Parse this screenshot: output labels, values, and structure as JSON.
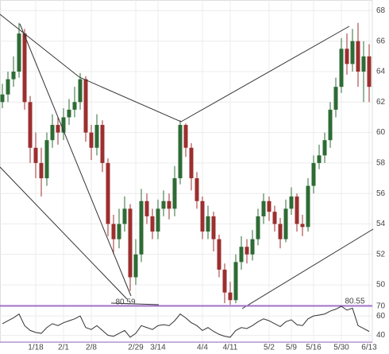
{
  "chart_data": {
    "type": "candlestick",
    "categories": [
      null,
      null,
      null,
      null,
      null,
      null,
      "1/18",
      null,
      null,
      null,
      null,
      "2/1",
      null,
      null,
      null,
      null,
      "2/8",
      null,
      null,
      null,
      null,
      null,
      null,
      null,
      "2/29",
      null,
      null,
      null,
      "3/14",
      null,
      null,
      null,
      null,
      null,
      null,
      null,
      "4/4",
      null,
      null,
      null,
      null,
      "4/11",
      null,
      null,
      null,
      null,
      null,
      null,
      "5/2",
      null,
      null,
      null,
      "5/9",
      null,
      null,
      null,
      "5/16",
      null,
      null,
      null,
      null,
      "5/30",
      null,
      null,
      null,
      null,
      "6/13"
    ],
    "open": [
      62.0,
      62.5,
      63.5,
      64.0,
      66.5,
      62.0,
      59.0,
      58.0,
      57.0,
      59.5,
      60.5,
      60.0,
      61.0,
      61.5,
      62.0,
      63.5,
      60.0,
      59.0,
      60.5,
      58.0,
      54.0,
      53.0,
      54.0,
      55.0,
      50.5,
      52.0,
      55.5,
      54.5,
      53.5,
      55.0,
      55.5,
      55.0,
      57.0,
      60.5,
      59.0,
      57.0,
      55.5,
      53.5,
      54.5,
      53.0,
      51.0,
      49.5,
      49.0,
      51.5,
      52.5,
      52.0,
      53.0,
      54.5,
      55.5,
      54.8,
      54.0,
      53.0,
      55.0,
      55.8,
      54.0,
      53.8,
      56.5,
      58.0,
      58.5,
      59.5,
      61.5,
      63.0,
      65.5,
      64.5,
      66.0,
      64.0,
      65.0
    ],
    "high": [
      63.2,
      64.0,
      65.0,
      67.2,
      66.8,
      62.4,
      60.0,
      59.0,
      60.0,
      61.2,
      61.0,
      61.6,
      62.2,
      63.0,
      63.9,
      63.7,
      60.5,
      61.2,
      60.8,
      58.3,
      54.6,
      55.0,
      55.8,
      55.3,
      53.0,
      56.3,
      56.0,
      55.0,
      55.6,
      56.2,
      56.0,
      57.8,
      60.8,
      60.6,
      59.3,
      57.4,
      55.8,
      55.2,
      54.8,
      53.3,
      51.4,
      50.2,
      52.0,
      53.2,
      53.0,
      53.6,
      55.0,
      56.0,
      55.8,
      55.2,
      54.4,
      55.6,
      56.4,
      56.0,
      54.6,
      57.0,
      58.5,
      59.2,
      60.0,
      62.0,
      63.6,
      66.2,
      66.5,
      66.8,
      67.2,
      66.0,
      65.8
    ],
    "low": [
      61.6,
      62.0,
      63.0,
      63.6,
      61.5,
      58.0,
      57.0,
      55.8,
      56.5,
      59.0,
      59.2,
      59.5,
      60.5,
      61.0,
      61.5,
      59.4,
      58.2,
      58.5,
      57.4,
      53.2,
      52.0,
      52.4,
      53.5,
      49.6,
      50.0,
      51.5,
      54.0,
      53.0,
      53.0,
      54.5,
      54.3,
      54.5,
      56.6,
      58.4,
      56.2,
      55.0,
      53.0,
      53.0,
      52.2,
      50.5,
      48.8,
      48.7,
      48.8,
      51.0,
      51.4,
      51.6,
      52.6,
      54.0,
      54.2,
      53.5,
      52.4,
      52.8,
      54.6,
      53.5,
      53.2,
      53.5,
      56.0,
      57.6,
      58.0,
      59.0,
      61.0,
      62.6,
      63.8,
      64.0,
      63.0,
      62.0,
      62.0
    ],
    "close": [
      62.5,
      63.5,
      64.0,
      66.5,
      62.0,
      59.0,
      58.0,
      57.0,
      59.5,
      60.5,
      60.0,
      61.0,
      61.5,
      62.0,
      63.5,
      60.0,
      59.0,
      60.5,
      58.0,
      54.0,
      53.0,
      54.0,
      55.0,
      50.5,
      52.0,
      55.5,
      54.5,
      53.5,
      55.0,
      55.5,
      55.0,
      57.0,
      60.5,
      59.0,
      57.0,
      55.5,
      53.5,
      54.5,
      53.0,
      51.0,
      49.5,
      49.0,
      51.5,
      52.5,
      52.0,
      53.0,
      54.5,
      55.5,
      54.8,
      54.0,
      53.0,
      55.0,
      55.8,
      54.0,
      53.8,
      56.5,
      58.0,
      58.5,
      59.5,
      61.5,
      63.0,
      65.5,
      64.5,
      66.0,
      64.0,
      65.0,
      63.0
    ],
    "up_color": "#2e6b35",
    "down_color": "#9c2f2f",
    "ylim": [
      48.7,
      68.7
    ],
    "yticks": [
      50,
      52,
      54,
      56,
      58,
      60,
      62,
      64,
      66,
      68
    ],
    "grid": true,
    "indicator": {
      "type": "line",
      "color": "#333333",
      "values": [
        52,
        55,
        58,
        62,
        50,
        45,
        43,
        42,
        48,
        52,
        50,
        53,
        55,
        57,
        60,
        48,
        46,
        50,
        45,
        40,
        39,
        42,
        45,
        38,
        42,
        50,
        48,
        46,
        50,
        51,
        50,
        55,
        62,
        58,
        53,
        50,
        45,
        48,
        44,
        41,
        39,
        38,
        45,
        48,
        47,
        50,
        54,
        57,
        55,
        52,
        49,
        54,
        56,
        51,
        50,
        57,
        60,
        61,
        62,
        65,
        67,
        70,
        66,
        68,
        50,
        47,
        44
      ],
      "ylim": [
        33,
        70
      ],
      "yticks": [
        40,
        60,
        70
      ],
      "level": 70,
      "level_color": "#a070c8"
    },
    "annotations": [
      "80.59",
      "80.55"
    ]
  }
}
